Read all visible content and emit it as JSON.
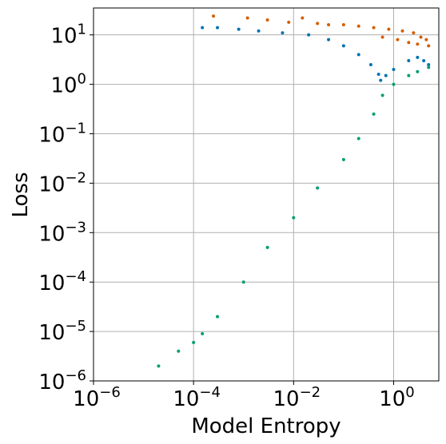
{
  "chart_data": {
    "type": "scatter",
    "xlabel": "Model Entropy",
    "ylabel": "Loss",
    "xscale": "log",
    "yscale": "log",
    "xlim": [
      1e-06,
      8
    ],
    "ylim": [
      1e-06,
      35
    ],
    "grid": true,
    "x_ticks": [
      {
        "value": 1e-06,
        "base": "10",
        "exp": "−6"
      },
      {
        "value": 0.0001,
        "base": "10",
        "exp": "−4"
      },
      {
        "value": 0.01,
        "base": "10",
        "exp": "−2"
      },
      {
        "value": 1,
        "base": "10",
        "exp": "0"
      }
    ],
    "y_ticks": [
      {
        "value": 1e-06,
        "base": "10",
        "exp": "−6"
      },
      {
        "value": 1e-05,
        "base": "10",
        "exp": "−5"
      },
      {
        "value": 0.0001,
        "base": "10",
        "exp": "−4"
      },
      {
        "value": 0.001,
        "base": "10",
        "exp": "−3"
      },
      {
        "value": 0.01,
        "base": "10",
        "exp": "−2"
      },
      {
        "value": 0.1,
        "base": "10",
        "exp": "−1"
      },
      {
        "value": 1,
        "base": "10",
        "exp": "0"
      },
      {
        "value": 10,
        "base": "10",
        "exp": "1"
      }
    ],
    "series": [
      {
        "color": "#d55e00",
        "points": [
          [
            0.00025,
            24
          ],
          [
            0.0012,
            22
          ],
          [
            0.003,
            20
          ],
          [
            0.008,
            18
          ],
          [
            0.015,
            22
          ],
          [
            0.03,
            17
          ],
          [
            0.05,
            16
          ],
          [
            0.1,
            16
          ],
          [
            0.2,
            15
          ],
          [
            0.4,
            14
          ],
          [
            0.8,
            13
          ],
          [
            1.5,
            12
          ],
          [
            2.5,
            11
          ],
          [
            3.5,
            9
          ],
          [
            4.5,
            8
          ],
          [
            5,
            6
          ],
          [
            0.6,
            9
          ],
          [
            1.2,
            8
          ],
          [
            2,
            7
          ],
          [
            3,
            6.5
          ]
        ]
      },
      {
        "color": "#0072b2",
        "points": [
          [
            0.00015,
            14
          ],
          [
            0.0003,
            14
          ],
          [
            0.0008,
            13
          ],
          [
            0.002,
            12
          ],
          [
            0.006,
            11
          ],
          [
            0.02,
            10
          ],
          [
            0.05,
            8
          ],
          [
            0.1,
            6
          ],
          [
            0.2,
            4
          ],
          [
            0.35,
            2.5
          ],
          [
            0.5,
            1.6
          ],
          [
            0.55,
            1.2
          ],
          [
            0.7,
            1.5
          ],
          [
            1,
            2
          ],
          [
            2,
            3
          ],
          [
            3,
            3.5
          ],
          [
            4,
            3
          ],
          [
            5,
            2.5
          ]
        ]
      },
      {
        "color": "#009e73",
        "points": [
          [
            2e-05,
            2e-06
          ],
          [
            5e-05,
            4e-06
          ],
          [
            0.0001,
            6e-06
          ],
          [
            0.00015,
            9e-06
          ],
          [
            0.0003,
            2e-05
          ],
          [
            0.001,
            0.0001
          ],
          [
            0.003,
            0.0005
          ],
          [
            0.01,
            0.002
          ],
          [
            0.03,
            0.008
          ],
          [
            0.1,
            0.03
          ],
          [
            0.2,
            0.08
          ],
          [
            0.4,
            0.25
          ],
          [
            0.6,
            0.6
          ],
          [
            1,
            1
          ],
          [
            2,
            1.5
          ],
          [
            3,
            1.8
          ],
          [
            5,
            2.2
          ]
        ]
      }
    ]
  }
}
